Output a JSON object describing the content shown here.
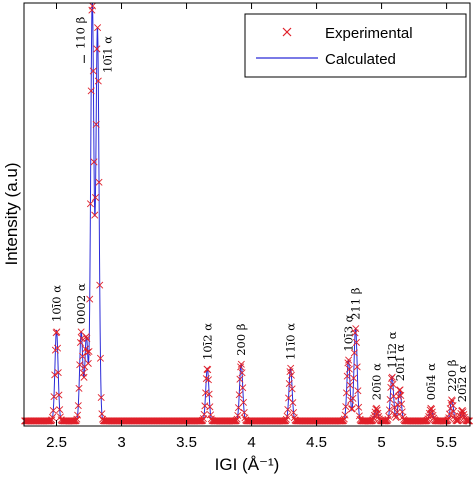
{
  "chart_data": {
    "type": "line",
    "xlabel": "IGI (Å⁻¹)",
    "ylabel": "Intensity (a.u)",
    "xlim": [
      2.25,
      5.68
    ],
    "ylim": [
      0,
      1.0
    ],
    "xticks": [
      2.5,
      3,
      3.5,
      4,
      4.5,
      5,
      5.5
    ],
    "xtick_labels": [
      "2.5",
      "3",
      "3.5",
      "4",
      "4.5",
      "5",
      "5.5"
    ],
    "grid": false,
    "legend_position": "top-right",
    "series": [
      {
        "name": "Experimental",
        "color": "#e0202a",
        "marker": "x",
        "style": "markers"
      },
      {
        "name": "Calculated",
        "color": "#2a2ad8",
        "marker": "none",
        "style": "line"
      }
    ],
    "peaks": [
      {
        "x": 2.5,
        "height": 0.215,
        "label": "10ī0 α"
      },
      {
        "x": 2.69,
        "height": 0.21,
        "label": "0002 α"
      },
      {
        "x": 2.73,
        "height": 0.2,
        "label": ""
      },
      {
        "x": 2.775,
        "height": 1.0,
        "label": "110 β"
      },
      {
        "x": 2.815,
        "height": 0.93,
        "label": "10ī1 α"
      },
      {
        "x": 3.66,
        "height": 0.125,
        "label": "10ī2 α"
      },
      {
        "x": 3.92,
        "height": 0.135,
        "label": "200 β"
      },
      {
        "x": 4.3,
        "height": 0.125,
        "label": "11ī0 α"
      },
      {
        "x": 4.745,
        "height": 0.145,
        "label": "10ī3 α"
      },
      {
        "x": 4.8,
        "height": 0.22,
        "label": "211 β"
      },
      {
        "x": 4.96,
        "height": 0.03,
        "label": "20ī0 α"
      },
      {
        "x": 5.08,
        "height": 0.105,
        "label": "11ī2 α"
      },
      {
        "x": 5.14,
        "height": 0.075,
        "label": "20ī1 α"
      },
      {
        "x": 5.38,
        "height": 0.03,
        "label": "00ī4 α"
      },
      {
        "x": 5.54,
        "height": 0.05,
        "label": "220 β"
      },
      {
        "x": 5.62,
        "height": 0.025,
        "label": "20ī2 α"
      }
    ],
    "baseline": 0.012
  }
}
